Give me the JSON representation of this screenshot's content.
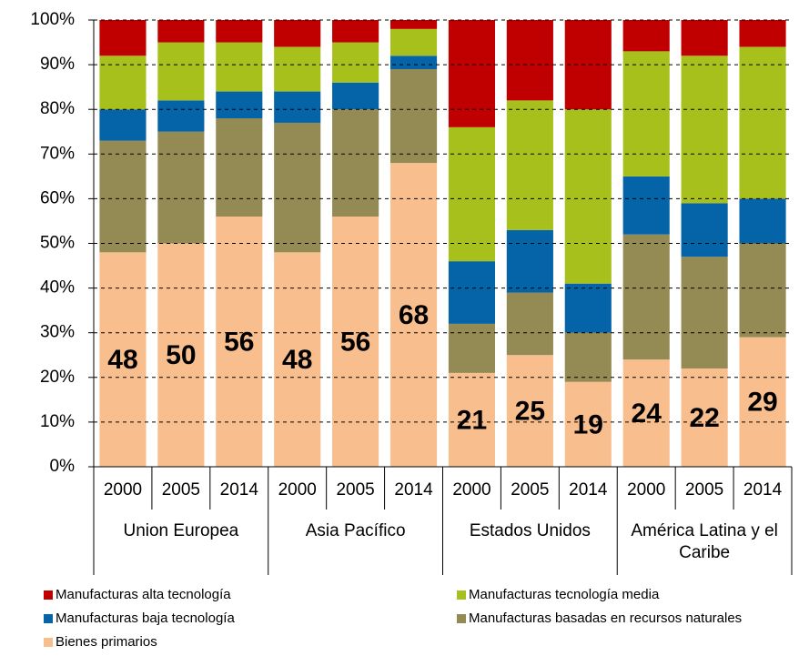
{
  "chart_data": {
    "type": "stacked_bar",
    "categories": [
      "2000",
      "2005",
      "2014",
      "2000",
      "2005",
      "2014",
      "2000",
      "2005",
      "2014",
      "2000",
      "2005",
      "2014"
    ],
    "groups": [
      "Union Europea",
      "Asia Pacífico",
      "Estados Unidos",
      "América Latina y el Caribe"
    ],
    "series": [
      {
        "name": "Manufacturas alta tecnología",
        "color": "#c00000",
        "values": [
          8,
          5,
          5,
          6,
          5,
          2,
          24,
          18,
          20,
          7,
          8,
          6
        ]
      },
      {
        "name": "Manufacturas tecnología media",
        "color": "#a8c01c",
        "values": [
          12,
          13,
          11,
          10,
          9,
          6,
          30,
          29,
          39,
          28,
          33,
          34
        ]
      },
      {
        "name": "Manufacturas baja tecnología",
        "color": "#0563a8",
        "values": [
          7,
          7,
          6,
          7,
          6,
          3,
          14,
          14,
          11,
          13,
          12,
          10
        ]
      },
      {
        "name": "Manufacturas basadas en recursos naturales",
        "color": "#948a54",
        "values": [
          25,
          25,
          22,
          29,
          24,
          21,
          11,
          14,
          11,
          28,
          25,
          21
        ]
      },
      {
        "name": "Bienes primarios",
        "color": "#f9be8e",
        "values": [
          48,
          50,
          56,
          48,
          56,
          68,
          21,
          25,
          19,
          24,
          22,
          29
        ]
      }
    ],
    "ylim": [
      0,
      100
    ],
    "yticks": [
      {
        "value": 0,
        "label": "0%"
      },
      {
        "value": 10,
        "label": "10%"
      },
      {
        "value": 20,
        "label": "20%"
      },
      {
        "value": 30,
        "label": "30%"
      },
      {
        "value": 40,
        "label": "40%"
      },
      {
        "value": 50,
        "label": "50%"
      },
      {
        "value": 60,
        "label": "60%"
      },
      {
        "value": 70,
        "label": "70%"
      },
      {
        "value": 80,
        "label": "80%"
      },
      {
        "value": 90,
        "label": "90%"
      },
      {
        "value": 100,
        "label": "100%"
      }
    ],
    "grid": true
  }
}
